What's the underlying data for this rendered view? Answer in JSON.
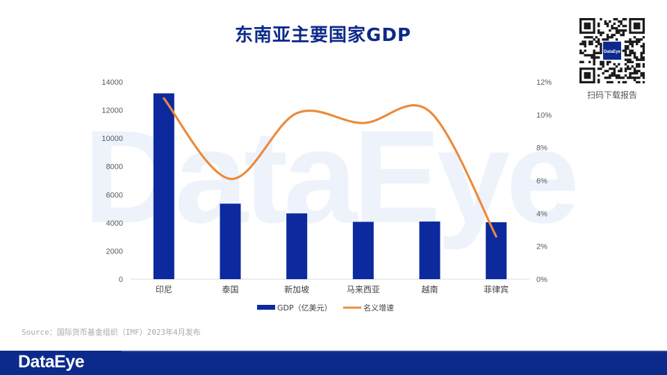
{
  "page": {
    "title": "东南亚主要国家GDP",
    "watermark": "DataEye",
    "qr_caption": "扫码下载报告",
    "qr_center_label": "DataEye",
    "source": "Source：国际货币基金组织（IMF）2023年4月发布",
    "footer_logo": "DataEye"
  },
  "colors": {
    "bar": "#0c2a9e",
    "line": "#ec8a3c",
    "title": "#0d2a8a",
    "footer": "#0c2a8c"
  },
  "chart_data": {
    "type": "bar",
    "categories": [
      "印尼",
      "泰国",
      "新加坡",
      "马来西亚",
      "越南",
      "菲律宾"
    ],
    "series": [
      {
        "name": "GDP（亿美元）",
        "kind": "bar",
        "axis": "left",
        "values": [
          13190,
          5360,
          4670,
          4070,
          4090,
          4040
        ]
      },
      {
        "name": "名义增速",
        "kind": "line",
        "axis": "right",
        "smooth": true,
        "values": [
          11.0,
          6.1,
          10.1,
          9.5,
          10.2,
          2.6
        ]
      }
    ],
    "y_left": {
      "lim": [
        0,
        14000
      ],
      "ticks": [
        "0",
        "2000",
        "4000",
        "6000",
        "8000",
        "10000",
        "12000",
        "14000"
      ]
    },
    "y_right": {
      "lim": [
        0,
        12
      ],
      "ticks": [
        "0%",
        "2%",
        "4%",
        "6%",
        "8%",
        "10%",
        "12%"
      ]
    },
    "legend_position": "bottom",
    "grid": false
  }
}
